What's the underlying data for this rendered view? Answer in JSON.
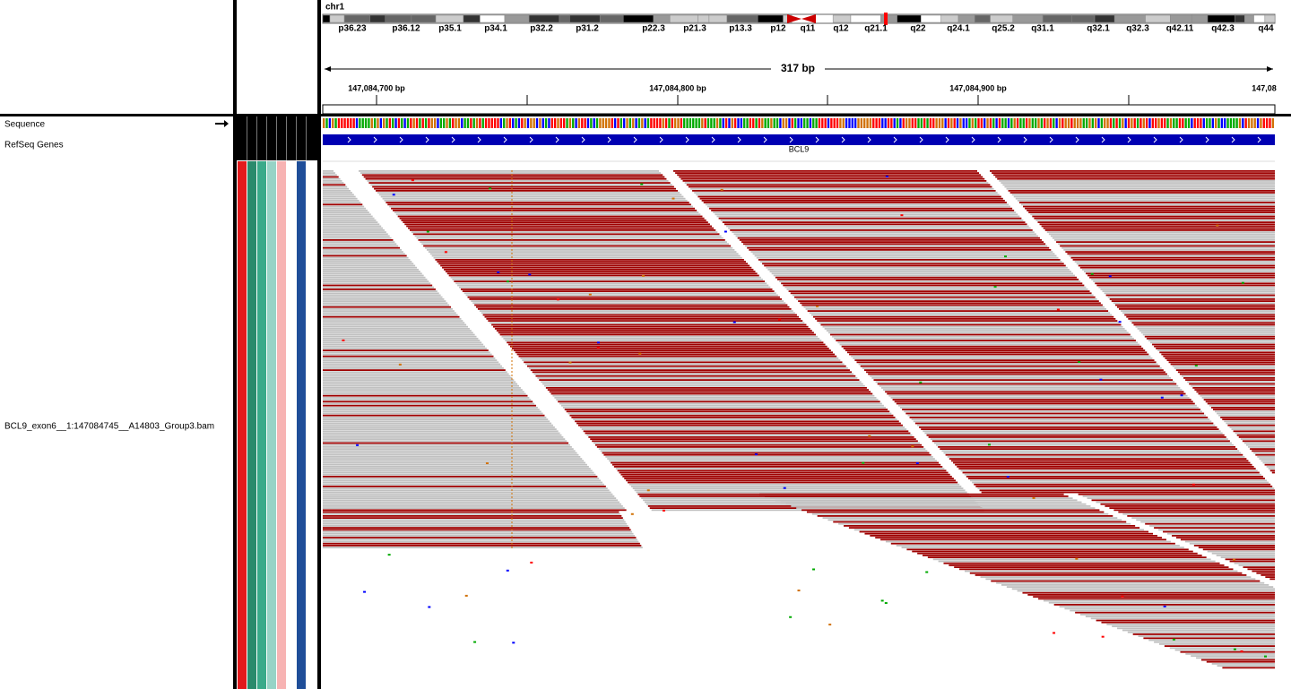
{
  "header": {
    "chromosome": "chr1",
    "bands": [
      "p36.23",
      "p36.12",
      "p35.1",
      "p34.1",
      "p32.2",
      "p31.2",
      "p22.3",
      "p21.3",
      "p13.3",
      "p12",
      "q11",
      "q12",
      "q21.1",
      "q22",
      "q24.1",
      "q25.2",
      "q31.1",
      "q32.1",
      "q32.3",
      "q42.11",
      "q42.3",
      "q44"
    ],
    "span": "317 bp",
    "positions": [
      "147,084,700 bp",
      "147,084,800 bp",
      "147,084,900 bp",
      "147,08"
    ]
  },
  "tracks": {
    "sequence": "Sequence",
    "genes": "RefSeq Genes",
    "gene_name": "BCL9",
    "alignment": "BCL9_exon6__1:147084745__A14803_Group3.bam"
  }
}
